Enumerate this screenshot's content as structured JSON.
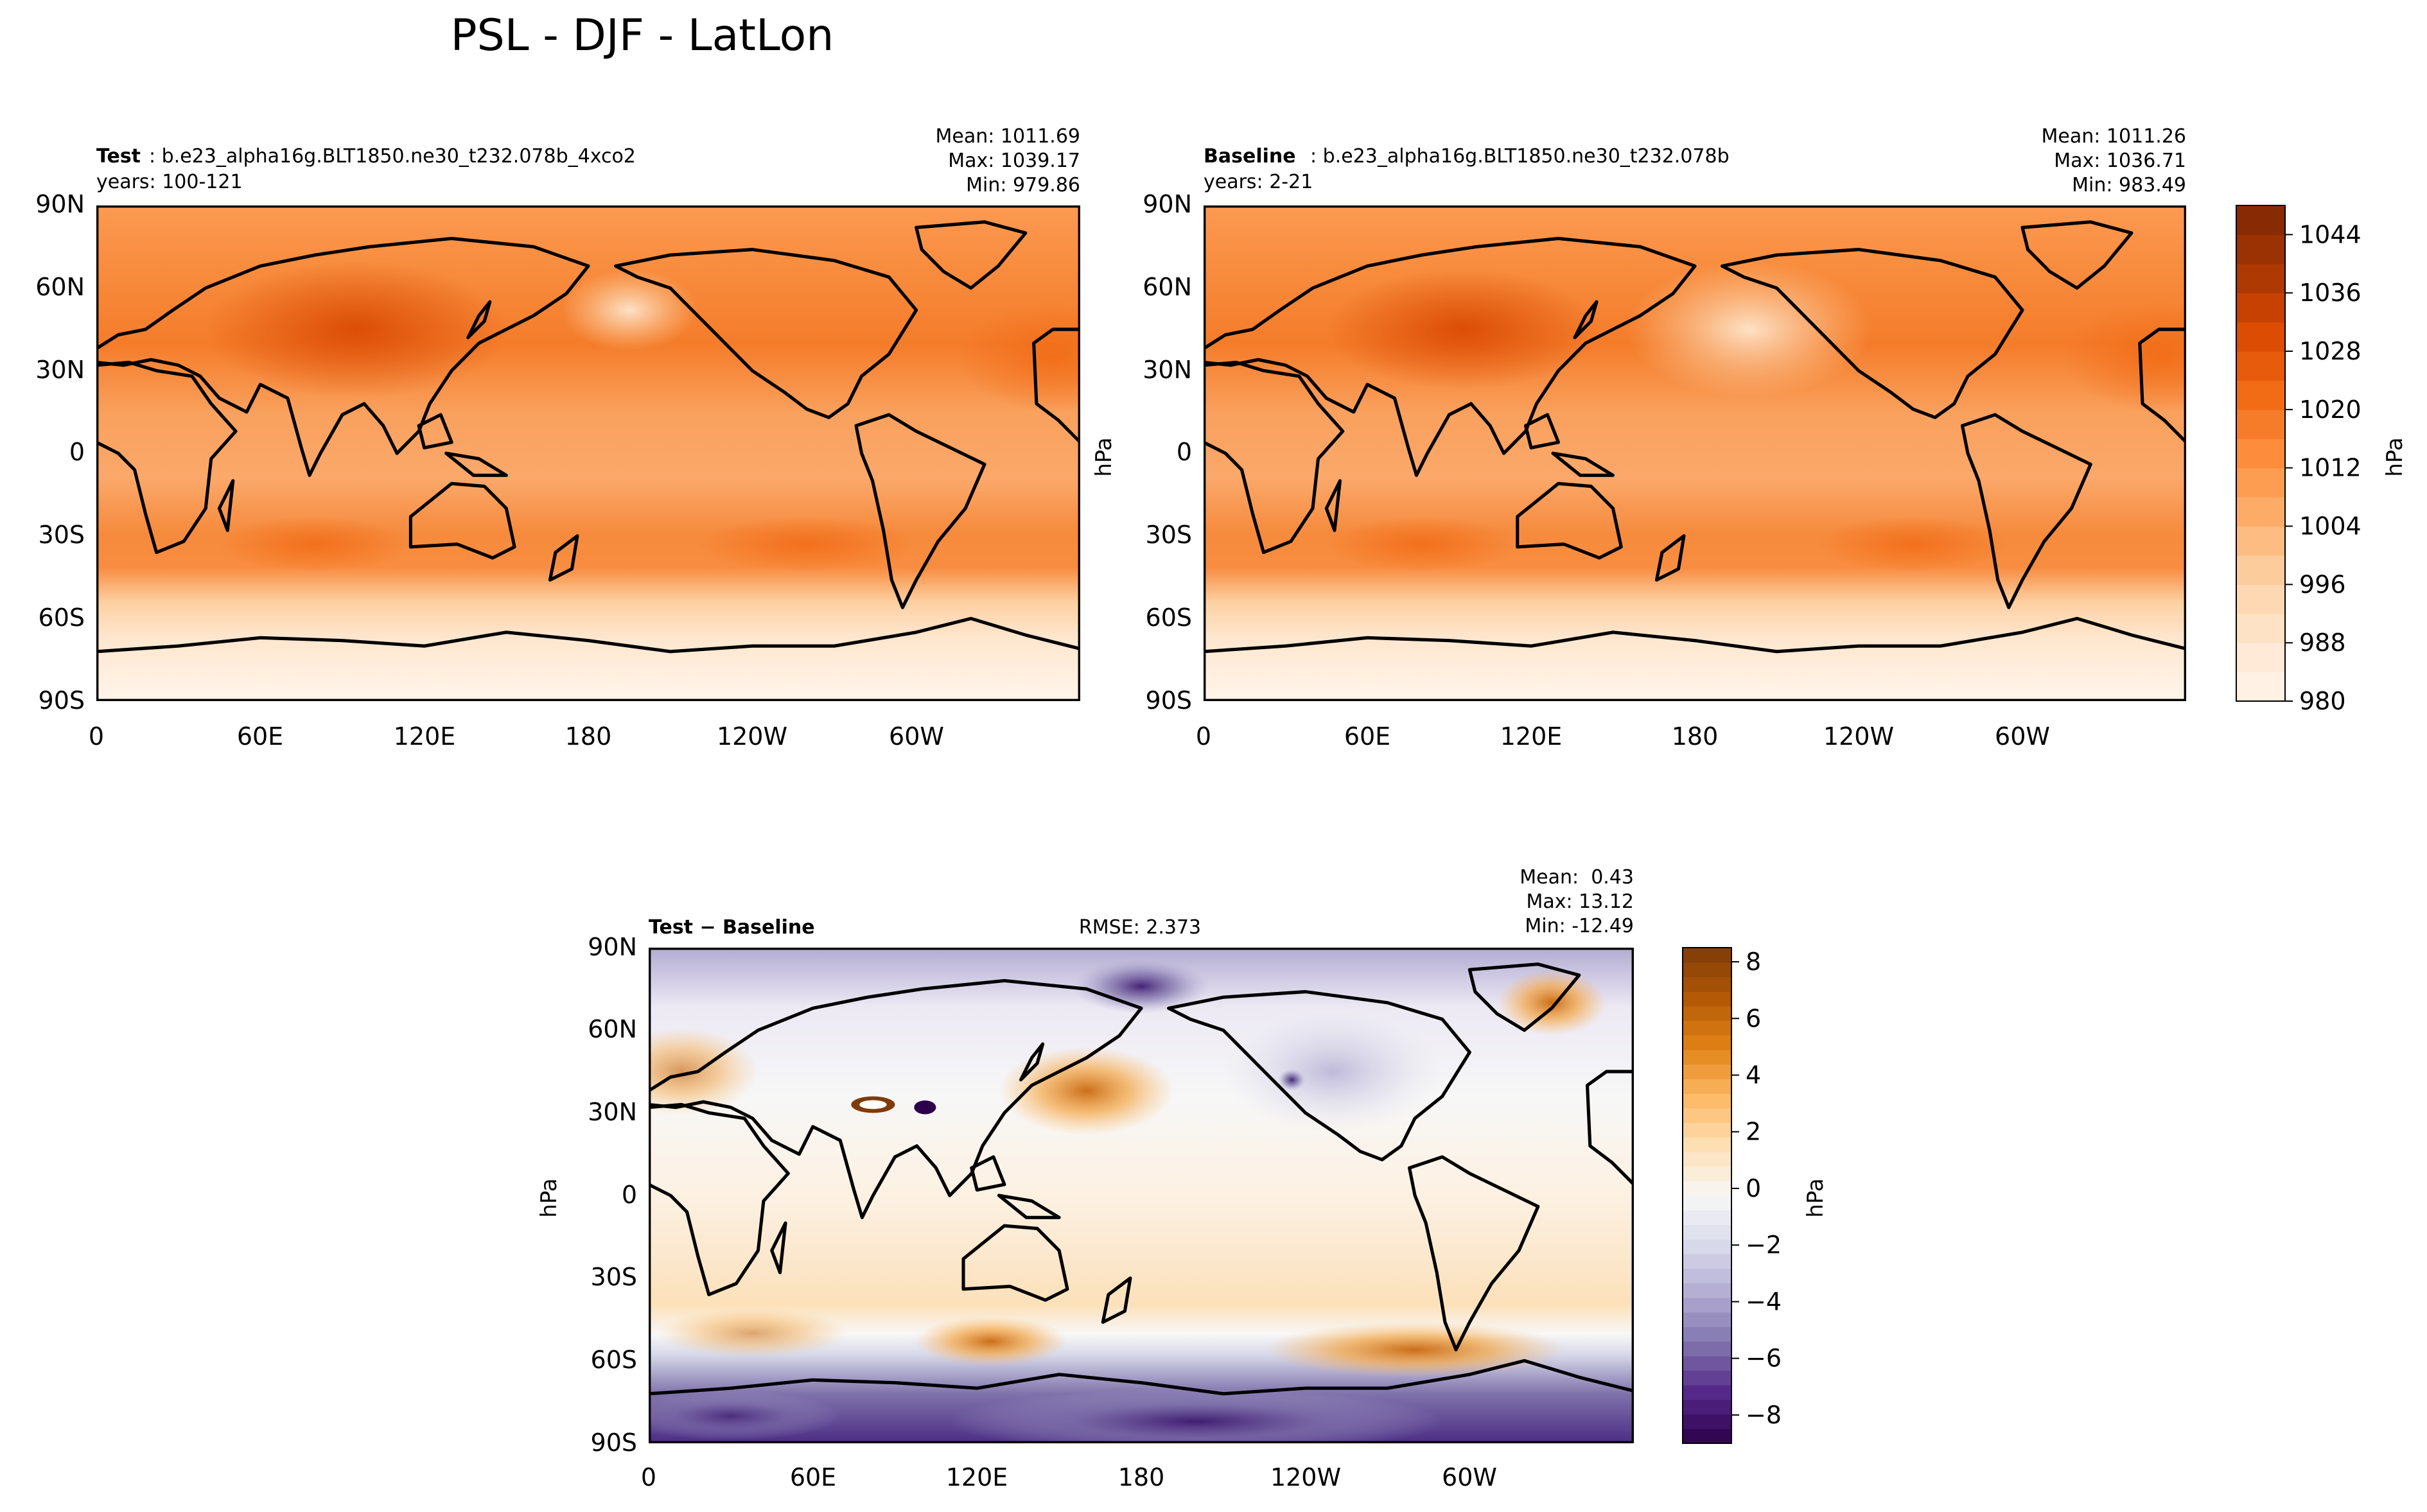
{
  "figure_title": "PSL - DJF - LatLon",
  "chart_data": [
    {
      "type": "heatmap",
      "panel": "test",
      "label_bold": "Test",
      "label_text": ": b.e23_alpha16g.BLT1850.ne30_t232.078b_4xco2",
      "years": "years: 100-121",
      "stats": [
        "Mean: 1011.69",
        "Max: 1039.17",
        "Min: 979.86"
      ],
      "x_ticks": [
        "0",
        "60E",
        "120E",
        "180",
        "120W",
        "60W"
      ],
      "y_ticks": [
        "90N",
        "60N",
        "30N",
        "0",
        "30S",
        "60S",
        "90S"
      ],
      "xlim": [
        0,
        360
      ],
      "ylim": [
        -90,
        90
      ],
      "units": "hPa"
    },
    {
      "type": "heatmap",
      "panel": "baseline",
      "label_bold": "Baseline",
      "label_text": ": b.e23_alpha16g.BLT1850.ne30_t232.078b",
      "years": "years: 2-21",
      "stats": [
        "Mean: 1011.26",
        "Max: 1036.71",
        "Min: 983.49"
      ],
      "x_ticks": [
        "0",
        "60E",
        "120E",
        "180",
        "120W",
        "60W"
      ],
      "y_ticks": [
        "90N",
        "60N",
        "30N",
        "0",
        "30S",
        "60S",
        "90S"
      ],
      "ylabel": "hPa",
      "colorbar": {
        "label": "hPa",
        "range": [
          980,
          1048
        ],
        "ticks": [
          "980",
          "988",
          "996",
          "1004",
          "1012",
          "1020",
          "1028",
          "1036",
          "1044"
        ],
        "tick_values": [
          980,
          988,
          996,
          1004,
          1012,
          1020,
          1028,
          1036,
          1044
        ],
        "n_levels": 17,
        "colors": [
          "#fff5eb",
          "#fee6ce",
          "#fdd0a2",
          "#fdae6b",
          "#fd8d3c",
          "#f16913",
          "#d94801",
          "#a63603",
          "#7f2704"
        ]
      }
    },
    {
      "type": "heatmap",
      "panel": "difference",
      "label_bold": "Test − Baseline",
      "rmse": "RMSE: 2.373",
      "stats": [
        "Mean:  0.43",
        "Max: 13.12",
        "Min: -12.49"
      ],
      "x_ticks": [
        "0",
        "60E",
        "120E",
        "180",
        "120W",
        "60W"
      ],
      "y_ticks": [
        "90N",
        "60N",
        "30N",
        "0",
        "30S",
        "60S",
        "90S"
      ],
      "ylabel": "hPa",
      "colorbar": {
        "label": "hPa",
        "range": [
          -9,
          8.5
        ],
        "ticks": [
          "−8",
          "−6",
          "−4",
          "−2",
          "0",
          "2",
          "4",
          "6",
          "8"
        ],
        "tick_values": [
          -8,
          -6,
          -4,
          -2,
          0,
          2,
          4,
          6,
          8
        ],
        "n_levels": 34,
        "colors": [
          "#2d004b",
          "#542788",
          "#8073ac",
          "#b2abd2",
          "#d8daeb",
          "#f7f7f7",
          "#fee0b6",
          "#fdb863",
          "#e08214",
          "#b35806",
          "#7f3b08"
        ]
      }
    }
  ]
}
